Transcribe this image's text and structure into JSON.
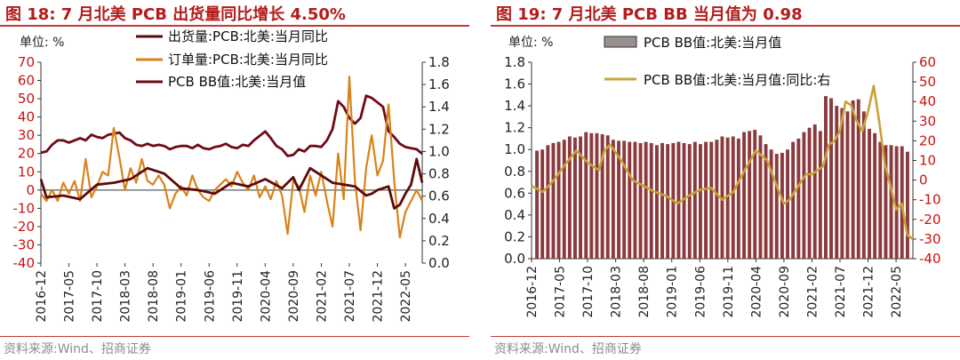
{
  "chart_data": [
    {
      "type": "line",
      "title": "图 18:  7 月北美 PCB 出货量同比增长 4.50%",
      "unit_label": "单位:  %",
      "source": "资料来源:Wind、招商证券",
      "x_tick_labels": [
        "2016-12",
        "2017-05",
        "2017-10",
        "2018-03",
        "2018-08",
        "2019-01",
        "2019-06",
        "2019-11",
        "2020-04",
        "2020-09",
        "2021-02",
        "2021-07",
        "2021-12",
        "2022-05"
      ],
      "x_range": [
        2016.917,
        2022.583
      ],
      "y_left": {
        "min": -40,
        "max": 70,
        "ticks": [
          70,
          60,
          50,
          40,
          30,
          20,
          10,
          0,
          -10,
          -20,
          -30,
          -40
        ]
      },
      "y_right": {
        "min": 0.0,
        "max": 1.8,
        "ticks": [
          "1.8",
          "1.6",
          "1.4",
          "1.2",
          "1.0",
          "0.8",
          "0.6",
          "0.4",
          "0.2",
          "0.0"
        ]
      },
      "legend_position": "top-left",
      "series": [
        {
          "name": "出货量:PCB:北美:当月同比",
          "color": "#5c0a0a",
          "axis": "left",
          "points": [
            [
              2016.917,
              6
            ],
            [
              2017.0,
              -4
            ],
            [
              2017.25,
              -3
            ],
            [
              2017.5,
              -5
            ],
            [
              2017.75,
              3
            ],
            [
              2018.0,
              4
            ],
            [
              2018.25,
              6
            ],
            [
              2018.5,
              12
            ],
            [
              2018.75,
              9
            ],
            [
              2019.0,
              1
            ],
            [
              2019.25,
              0
            ],
            [
              2019.5,
              -2
            ],
            [
              2019.75,
              4
            ],
            [
              2020.0,
              2
            ],
            [
              2020.25,
              6
            ],
            [
              2020.5,
              1
            ],
            [
              2020.667,
              7
            ],
            [
              2020.75,
              0
            ],
            [
              2020.917,
              12
            ],
            [
              2021.25,
              4
            ],
            [
              2021.583,
              2
            ],
            [
              2021.75,
              -3
            ],
            [
              2021.833,
              -2
            ],
            [
              2021.917,
              0
            ],
            [
              2022.083,
              2
            ],
            [
              2022.167,
              -10
            ],
            [
              2022.25,
              -8
            ],
            [
              2022.333,
              -2
            ],
            [
              2022.417,
              3
            ],
            [
              2022.5,
              17
            ],
            [
              2022.583,
              4
            ]
          ]
        },
        {
          "name": "订单量:PCB:北美:当月同比",
          "color": "#d9821a",
          "axis": "left",
          "points": [
            [
              2016.917,
              -2
            ],
            [
              2017.0,
              -6
            ],
            [
              2017.083,
              0
            ],
            [
              2017.167,
              -6
            ],
            [
              2017.25,
              4
            ],
            [
              2017.333,
              -2
            ],
            [
              2017.417,
              5
            ],
            [
              2017.5,
              -6
            ],
            [
              2017.583,
              17
            ],
            [
              2017.667,
              -4
            ],
            [
              2017.75,
              2
            ],
            [
              2017.833,
              10
            ],
            [
              2017.917,
              8
            ],
            [
              2018.0,
              34
            ],
            [
              2018.083,
              18
            ],
            [
              2018.167,
              0
            ],
            [
              2018.25,
              12
            ],
            [
              2018.333,
              4
            ],
            [
              2018.417,
              17
            ],
            [
              2018.5,
              5
            ],
            [
              2018.583,
              3
            ],
            [
              2018.667,
              8
            ],
            [
              2018.75,
              3
            ],
            [
              2018.833,
              -10
            ],
            [
              2018.917,
              -2
            ],
            [
              2019.0,
              2
            ],
            [
              2019.083,
              -3
            ],
            [
              2019.167,
              8
            ],
            [
              2019.25,
              0
            ],
            [
              2019.333,
              -4
            ],
            [
              2019.417,
              -6
            ],
            [
              2019.5,
              0
            ],
            [
              2019.583,
              3
            ],
            [
              2019.667,
              6
            ],
            [
              2019.75,
              2
            ],
            [
              2019.833,
              10
            ],
            [
              2019.917,
              4
            ],
            [
              2020.0,
              0
            ],
            [
              2020.083,
              8
            ],
            [
              2020.167,
              -4
            ],
            [
              2020.25,
              2
            ],
            [
              2020.333,
              -5
            ],
            [
              2020.417,
              5
            ],
            [
              2020.5,
              -3
            ],
            [
              2020.583,
              -24
            ],
            [
              2020.667,
              5
            ],
            [
              2020.75,
              2
            ],
            [
              2020.833,
              -12
            ],
            [
              2020.917,
              8
            ],
            [
              2021.0,
              -3
            ],
            [
              2021.083,
              10
            ],
            [
              2021.167,
              -6
            ],
            [
              2021.25,
              -20
            ],
            [
              2021.333,
              20
            ],
            [
              2021.417,
              -5
            ],
            [
              2021.5,
              62
            ],
            [
              2021.583,
              5
            ],
            [
              2021.667,
              -22
            ],
            [
              2021.75,
              12
            ],
            [
              2021.833,
              30
            ],
            [
              2021.917,
              8
            ],
            [
              2022.0,
              16
            ],
            [
              2022.083,
              47
            ],
            [
              2022.167,
              5
            ],
            [
              2022.25,
              -26
            ],
            [
              2022.333,
              -12
            ],
            [
              2022.417,
              -6
            ],
            [
              2022.5,
              0
            ],
            [
              2022.583,
              -6
            ]
          ]
        },
        {
          "name": "PCB BB值:北美:当月值",
          "color": "#6e0b17",
          "axis": "right",
          "points": [
            [
              2016.917,
              0.99
            ],
            [
              2017.0,
              1.0
            ],
            [
              2017.083,
              1.06
            ],
            [
              2017.167,
              1.1
            ],
            [
              2017.25,
              1.1
            ],
            [
              2017.333,
              1.08
            ],
            [
              2017.417,
              1.1
            ],
            [
              2017.5,
              1.12
            ],
            [
              2017.583,
              1.1
            ],
            [
              2017.667,
              1.15
            ],
            [
              2017.75,
              1.13
            ],
            [
              2017.833,
              1.12
            ],
            [
              2017.917,
              1.15
            ],
            [
              2018.0,
              1.16
            ],
            [
              2018.083,
              1.17
            ],
            [
              2018.167,
              1.12
            ],
            [
              2018.25,
              1.1
            ],
            [
              2018.333,
              1.06
            ],
            [
              2018.417,
              1.05
            ],
            [
              2018.5,
              1.07
            ],
            [
              2018.583,
              1.05
            ],
            [
              2018.667,
              1.06
            ],
            [
              2018.75,
              1.05
            ],
            [
              2018.833,
              1.02
            ],
            [
              2018.917,
              1.04
            ],
            [
              2019.0,
              1.05
            ],
            [
              2019.083,
              1.05
            ],
            [
              2019.167,
              1.03
            ],
            [
              2019.25,
              1.06
            ],
            [
              2019.333,
              1.03
            ],
            [
              2019.417,
              1.02
            ],
            [
              2019.5,
              1.04
            ],
            [
              2019.583,
              1.05
            ],
            [
              2019.667,
              1.07
            ],
            [
              2019.75,
              1.04
            ],
            [
              2019.833,
              1.03
            ],
            [
              2019.917,
              1.06
            ],
            [
              2020.0,
              1.05
            ],
            [
              2020.083,
              1.1
            ],
            [
              2020.167,
              1.14
            ],
            [
              2020.25,
              1.18
            ],
            [
              2020.333,
              1.12
            ],
            [
              2020.417,
              1.05
            ],
            [
              2020.5,
              1.02
            ],
            [
              2020.583,
              0.96
            ],
            [
              2020.667,
              0.97
            ],
            [
              2020.75,
              1.02
            ],
            [
              2020.833,
              1.0
            ],
            [
              2020.917,
              1.05
            ],
            [
              2021.0,
              1.05
            ],
            [
              2021.083,
              1.04
            ],
            [
              2021.167,
              1.1
            ],
            [
              2021.25,
              1.2
            ],
            [
              2021.333,
              1.45
            ],
            [
              2021.417,
              1.4
            ],
            [
              2021.5,
              1.3
            ],
            [
              2021.583,
              1.25
            ],
            [
              2021.667,
              1.3
            ],
            [
              2021.75,
              1.5
            ],
            [
              2021.833,
              1.48
            ],
            [
              2021.917,
              1.44
            ],
            [
              2022.0,
              1.4
            ],
            [
              2022.083,
              1.18
            ],
            [
              2022.167,
              1.13
            ],
            [
              2022.25,
              1.07
            ],
            [
              2022.333,
              1.04
            ],
            [
              2022.417,
              1.03
            ],
            [
              2022.5,
              1.02
            ],
            [
              2022.583,
              0.98
            ]
          ]
        }
      ]
    },
    {
      "type": "bar+line",
      "title": "图 19:  7 月北美 PCB BB 当月值为 0.98",
      "unit_label": "单位:  %",
      "source": "资料来源:Wind、招商证券",
      "x_tick_labels": [
        "2016-12",
        "2017-05",
        "2017-10",
        "2018-03",
        "2018-08",
        "2019-01",
        "2019-06",
        "2019-11",
        "2020-04",
        "2020-09",
        "2021-02",
        "2021-07",
        "2021-12",
        "2022-05"
      ],
      "x_range": [
        2016.917,
        2022.583
      ],
      "y_left": {
        "min": 0.0,
        "max": 1.8,
        "ticks": [
          "1.8",
          "1.6",
          "1.4",
          "1.2",
          "1.0",
          "0.8",
          "0.6",
          "0.4",
          "0.2",
          "0.0"
        ]
      },
      "y_right": {
        "min": -40,
        "max": 60,
        "ticks": [
          60,
          50,
          40,
          30,
          20,
          10,
          0,
          -10,
          -20,
          -30,
          -40
        ]
      },
      "legend_position": "top-left",
      "series": [
        {
          "name": "PCB BB值:北美:当月值",
          "type": "bar",
          "color": "#8b3a3e",
          "axis": "left",
          "values": [
            0.99,
            1.0,
            1.04,
            1.06,
            1.07,
            1.09,
            1.12,
            1.11,
            1.12,
            1.16,
            1.15,
            1.15,
            1.14,
            1.13,
            1.09,
            1.08,
            1.08,
            1.07,
            1.07,
            1.06,
            1.07,
            1.06,
            1.04,
            1.06,
            1.05,
            1.06,
            1.07,
            1.06,
            1.05,
            1.07,
            1.05,
            1.07,
            1.07,
            1.09,
            1.12,
            1.11,
            1.12,
            1.1,
            1.16,
            1.17,
            1.18,
            1.13,
            1.05,
            1.0,
            0.96,
            0.97,
            1.0,
            1.07,
            1.1,
            1.16,
            1.2,
            1.23,
            1.17,
            1.49,
            1.47,
            1.4,
            1.38,
            1.35,
            1.45,
            1.46,
            1.35,
            1.19,
            1.15,
            1.07,
            1.04,
            1.04,
            1.03,
            1.03,
            0.98
          ]
        },
        {
          "name": "PCB BB值:北美:当月值:同比:右",
          "type": "line",
          "color": "#c9a23a",
          "axis": "right",
          "points": [
            [
              2016.917,
              -3
            ],
            [
              2017.083,
              -6
            ],
            [
              2017.25,
              0
            ],
            [
              2017.417,
              8
            ],
            [
              2017.583,
              15
            ],
            [
              2017.75,
              9
            ],
            [
              2017.917,
              5
            ],
            [
              2018.0,
              15
            ],
            [
              2018.083,
              18
            ],
            [
              2018.25,
              10
            ],
            [
              2018.417,
              0
            ],
            [
              2018.583,
              -3
            ],
            [
              2018.75,
              -6
            ],
            [
              2018.917,
              -8
            ],
            [
              2019.083,
              -12
            ],
            [
              2019.25,
              -8
            ],
            [
              2019.417,
              -5
            ],
            [
              2019.583,
              -4
            ],
            [
              2019.75,
              -10
            ],
            [
              2019.917,
              -6
            ],
            [
              2020.083,
              5
            ],
            [
              2020.25,
              15
            ],
            [
              2020.417,
              10
            ],
            [
              2020.583,
              -5
            ],
            [
              2020.667,
              -12
            ],
            [
              2020.75,
              -10
            ],
            [
              2020.917,
              -1
            ],
            [
              2021.0,
              3
            ],
            [
              2021.083,
              3
            ],
            [
              2021.25,
              7
            ],
            [
              2021.333,
              18
            ],
            [
              2021.417,
              20
            ],
            [
              2021.5,
              25
            ],
            [
              2021.583,
              40
            ],
            [
              2021.667,
              38
            ],
            [
              2021.75,
              30
            ],
            [
              2021.833,
              25
            ],
            [
              2021.917,
              35
            ],
            [
              2022.0,
              48
            ],
            [
              2022.083,
              30
            ],
            [
              2022.167,
              8
            ],
            [
              2022.25,
              -3
            ],
            [
              2022.333,
              -15
            ],
            [
              2022.417,
              -12
            ],
            [
              2022.5,
              -28
            ],
            [
              2022.583,
              -30
            ]
          ]
        }
      ]
    }
  ]
}
